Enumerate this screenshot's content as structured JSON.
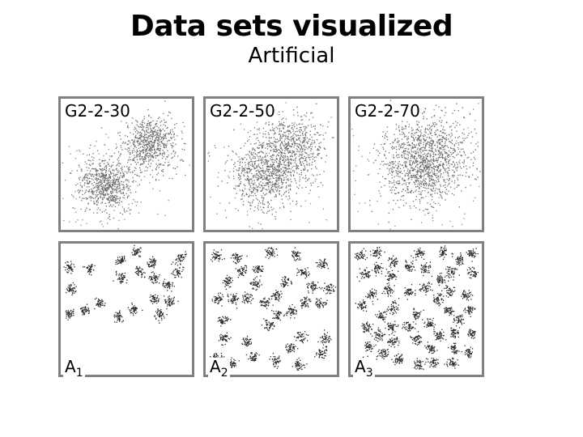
{
  "title": "Data sets visualized",
  "subtitle": "Artificial",
  "panels": [
    {
      "label": "G2-2-30",
      "type": "gauss2",
      "sep": 30
    },
    {
      "label": "G2-2-50",
      "type": "gauss2",
      "sep": 50
    },
    {
      "label": "G2-2-70",
      "type": "gauss2",
      "sep": 70
    },
    {
      "label_main": "A",
      "label_sub": "1",
      "type": "clusters",
      "count": 20
    },
    {
      "label_main": "A",
      "label_sub": "2",
      "type": "clusters",
      "count": 35
    },
    {
      "label_main": "A",
      "label_sub": "3",
      "type": "clusters",
      "count": 50
    }
  ]
}
